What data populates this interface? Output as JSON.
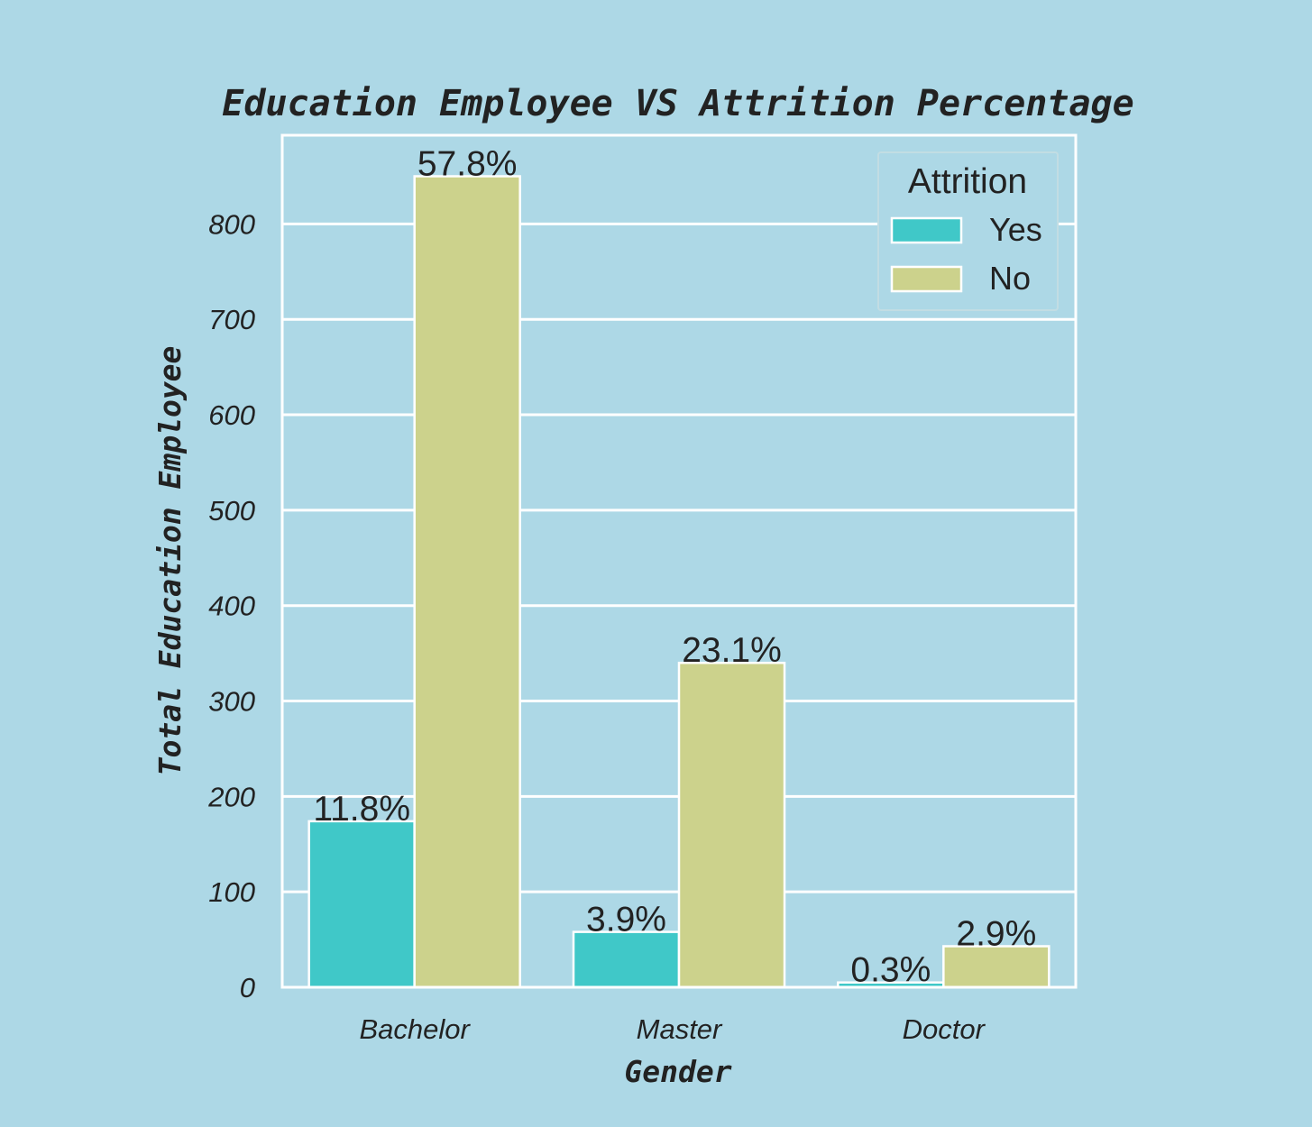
{
  "chart_data": {
    "type": "bar",
    "title": "Education Employee VS Attrition Percentage",
    "xlabel": "Gender",
    "ylabel": "Total Education Employee",
    "categories": [
      "Bachelor",
      "Master",
      "Doctor"
    ],
    "series": [
      {
        "name": "Yes",
        "color": "#40c8c8",
        "values": [
          174,
          58,
          5
        ],
        "labels": [
          "11.8%",
          "3.9%",
          "0.3%"
        ]
      },
      {
        "name": "No",
        "color": "#ccd28c",
        "values": [
          850,
          340,
          43
        ],
        "labels": [
          "57.8%",
          "23.1%",
          "2.9%"
        ]
      }
    ],
    "ylim": [
      0,
      893
    ],
    "yticks": [
      0,
      100,
      200,
      300,
      400,
      500,
      600,
      700,
      800
    ],
    "ytick_labels": [
      "0",
      "100",
      "200",
      "300",
      "400",
      "500",
      "600",
      "700",
      "800"
    ],
    "grid": true,
    "legend": {
      "title": "Attrition",
      "placement": "top-right"
    },
    "background_color": "#add8e6",
    "grid_color": "#ffffff"
  }
}
